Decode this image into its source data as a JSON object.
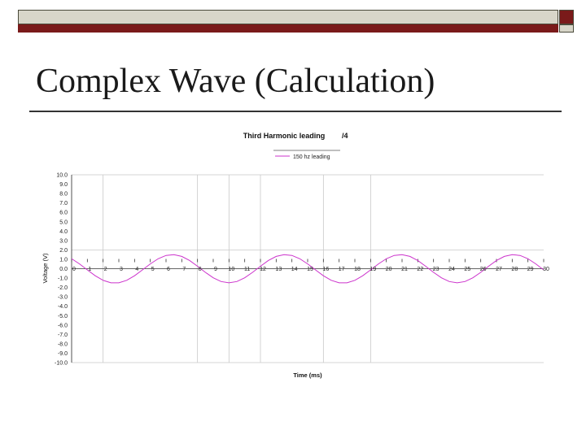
{
  "slide": {
    "title": "Complex Wave (Calculation)"
  },
  "colors": {
    "accent_dark": "#7a1a1a",
    "bar_light": "#d8d6c9",
    "series": "#cc33cc"
  },
  "chart_data": {
    "type": "line",
    "title": "Third Harmonic leading",
    "title_suffix": "/4",
    "xlabel": "Time (ms)",
    "ylabel": "Voltage (V)",
    "xlim": [
      0,
      30
    ],
    "ylim": [
      -10,
      10
    ],
    "x_ticks": [
      0,
      1,
      2,
      3,
      4,
      5,
      6,
      7,
      8,
      9,
      10,
      11,
      12,
      13,
      14,
      15,
      16,
      17,
      18,
      19,
      20,
      21,
      22,
      23,
      24,
      25,
      26,
      27,
      28,
      29,
      30
    ],
    "y_ticks": [
      "10.0",
      "9.0",
      "8.0",
      "7.0",
      "6.0",
      "5.0",
      "4.0",
      "3.0",
      "2.0",
      "1.0",
      "0.0",
      "-1.0",
      "-2.0",
      "-3.0",
      "-4.0",
      "-5.0",
      "-6.0",
      "-7.0",
      "-8.0",
      "-9.0",
      "-10.0"
    ],
    "grid": {
      "vertical_at": [
        0,
        2,
        8,
        10,
        12,
        16,
        19
      ],
      "horizontal_at": [
        -10,
        2,
        10
      ]
    },
    "legend": {
      "position": "top-center",
      "entries": [
        "150 hz leading"
      ]
    },
    "series": [
      {
        "name": "150 hz leading",
        "color": "#cc33cc",
        "x": [
          0,
          0.5,
          1,
          1.5,
          2,
          2.5,
          3,
          3.5,
          4,
          4.5,
          5,
          5.5,
          6,
          6.5,
          7,
          7.5,
          8,
          8.5,
          9,
          9.5,
          10,
          10.5,
          11,
          11.5,
          12,
          12.5,
          13,
          13.5,
          14,
          14.5,
          15,
          15.5,
          16,
          16.5,
          17,
          17.5,
          18,
          18.5,
          19,
          19.5,
          20,
          20.5,
          21,
          21.5,
          22,
          22.5,
          23,
          23.5,
          24,
          24.5,
          25,
          25.5,
          26,
          26.5,
          27,
          27.5,
          28,
          28.5,
          29,
          29.5,
          30
        ],
        "values": [
          1.06,
          0.51,
          -0.13,
          -0.75,
          -1.24,
          -1.5,
          -1.5,
          -1.24,
          -0.75,
          -0.13,
          0.51,
          1.06,
          1.41,
          1.49,
          1.31,
          0.87,
          0.26,
          -0.39,
          -0.97,
          -1.37,
          -1.5,
          -1.37,
          -0.97,
          -0.39,
          0.26,
          0.87,
          1.31,
          1.49,
          1.41,
          1.06,
          0.51,
          -0.13,
          -0.75,
          -1.24,
          -1.5,
          -1.5,
          -1.24,
          -0.75,
          -0.13,
          0.51,
          1.06,
          1.41,
          1.49,
          1.31,
          0.87,
          0.26,
          -0.39,
          -0.97,
          -1.37,
          -1.5,
          -1.37,
          -0.97,
          -0.39,
          0.26,
          0.87,
          1.31,
          1.49,
          1.41,
          1.06,
          0.51,
          -0.13
        ]
      }
    ]
  }
}
